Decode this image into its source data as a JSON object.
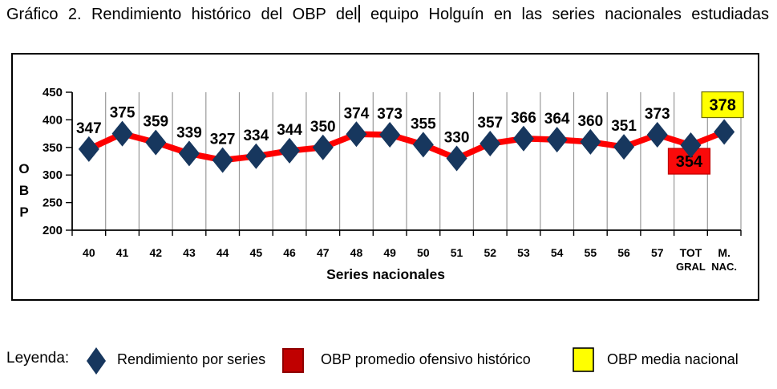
{
  "title": {
    "part1": "Gráfico 2. Rendimiento histórico del OBP del",
    "part2": "equipo Holguín en las series nacionales estudiadas"
  },
  "chart_data": {
    "type": "line",
    "xlabel": "Series nacionales",
    "ylabel": "OBP",
    "ylim": [
      200,
      450
    ],
    "ytick_step": 50,
    "grid": "vertical",
    "legend_position": "bottom",
    "categories": [
      "40",
      "41",
      "42",
      "43",
      "44",
      "45",
      "46",
      "47",
      "48",
      "49",
      "50",
      "51",
      "52",
      "53",
      "54",
      "55",
      "56",
      "57",
      "TOT\nGRAL",
      "M.\nNAC."
    ],
    "series": [
      {
        "name": "Rendimiento por series",
        "values": [
          347,
          375,
          359,
          339,
          327,
          334,
          344,
          350,
          374,
          373,
          355,
          330,
          357,
          366,
          364,
          360,
          351,
          373,
          354,
          378
        ]
      }
    ],
    "boxed_labels": [
      {
        "index": 18,
        "value": 354,
        "position": "below",
        "fill": "#FA0A0A",
        "border": "#C00000",
        "meaning": "OBP promedio ofensivo histórico"
      },
      {
        "index": 19,
        "value": 378,
        "position": "above",
        "fill": "#FFFF00",
        "border": "#6B6B00",
        "meaning": "OBP media nacional"
      }
    ],
    "colors": {
      "line": "#FE0000",
      "marker": "#17375E",
      "grid": "#999999",
      "axis": "#000000",
      "text": "#000000"
    }
  },
  "legend": {
    "label": "Leyenda:",
    "items": [
      {
        "swatch": "diamond",
        "color": "#17375E",
        "label": "Rendimiento por series"
      },
      {
        "swatch": "square",
        "color": "#C00000",
        "border": "#8F0000",
        "label": "OBP promedio ofensivo histórico"
      },
      {
        "swatch": "square",
        "color": "#FFFF00",
        "border": "#000000",
        "label": "OBP media nacional"
      }
    ]
  }
}
